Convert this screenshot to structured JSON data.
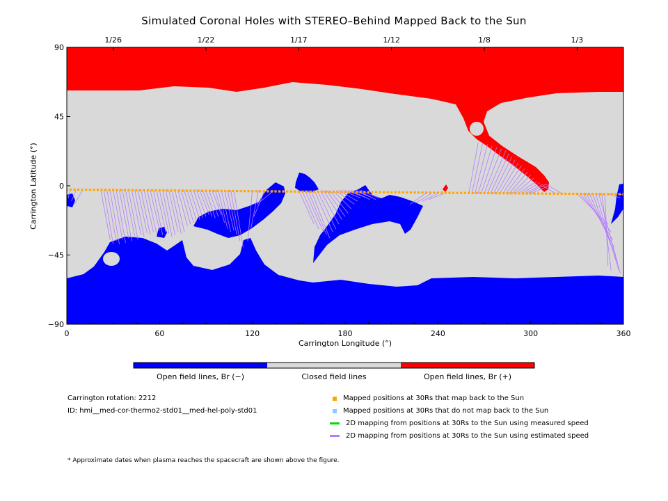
{
  "title": "Simulated Coronal Holes with STEREO–Behind Mapped Back to the Sun",
  "colors": {
    "negative": "#0000ff",
    "closed": "#d9d9d9",
    "positive": "#ff0000",
    "mapped": "#ffa500",
    "unmapped": "#87cefa",
    "measured": "#00dd00",
    "estimated": "#b47cff"
  },
  "chart_data": {
    "type": "map",
    "xlabel": "Carrington Longitude (°)",
    "ylabel": "Carrington Latitude (°)",
    "xlim": [
      0,
      360
    ],
    "ylim": [
      -90,
      90
    ],
    "x_ticks": [
      0,
      60,
      120,
      180,
      240,
      300,
      360
    ],
    "y_ticks": [
      -90,
      -45,
      0,
      45,
      90
    ],
    "y_tick_labels": [
      "−90",
      "−45",
      "0",
      "45",
      "90"
    ],
    "top_axis_dates": [
      {
        "label": "1/26",
        "lon": 30
      },
      {
        "label": "1/22",
        "lon": 90
      },
      {
        "label": "1/17",
        "lon": 150
      },
      {
        "label": "1/12",
        "lon": 210
      },
      {
        "label": "1/8",
        "lon": 270
      },
      {
        "label": "1/3",
        "lon": 330
      }
    ],
    "colorbar": {
      "segments": [
        "negative",
        "closed",
        "positive"
      ],
      "labels": [
        "Open field lines, Br (−)",
        "Closed field lines",
        "Open field lines, Br (+)"
      ]
    },
    "spacecraft_track": {
      "lon_start": 0,
      "lon_end": 360,
      "lat_start": -2.5,
      "lat_end": -5.5,
      "step": 2.5
    },
    "mapping_lines": [
      {
        "from": [
          22,
          -3
        ],
        "to": [
          28,
          -35
        ]
      },
      {
        "from": [
          24,
          -3
        ],
        "to": [
          30,
          -38
        ]
      },
      {
        "from": [
          26,
          -3
        ],
        "to": [
          32,
          -36
        ]
      },
      {
        "from": [
          28,
          -3
        ],
        "to": [
          34,
          -38
        ]
      },
      {
        "from": [
          30,
          -3
        ],
        "to": [
          36,
          -35
        ]
      },
      {
        "from": [
          32,
          -3
        ],
        "to": [
          38,
          -37
        ]
      },
      {
        "from": [
          34,
          -3
        ],
        "to": [
          40,
          -34
        ]
      },
      {
        "from": [
          36,
          -3
        ],
        "to": [
          42,
          -36
        ]
      },
      {
        "from": [
          38,
          -3
        ],
        "to": [
          44,
          -33
        ]
      },
      {
        "from": [
          40,
          -3
        ],
        "to": [
          46,
          -35
        ]
      },
      {
        "from": [
          42,
          -3
        ],
        "to": [
          48,
          -32
        ]
      },
      {
        "from": [
          44,
          -3
        ],
        "to": [
          50,
          -33
        ]
      },
      {
        "from": [
          46,
          -3
        ],
        "to": [
          52,
          -31
        ]
      },
      {
        "from": [
          48,
          -3
        ],
        "to": [
          54,
          -32
        ]
      },
      {
        "from": [
          50,
          -3
        ],
        "to": [
          56,
          -30
        ]
      },
      {
        "from": [
          52,
          -3
        ],
        "to": [
          58,
          -31
        ]
      },
      {
        "from": [
          54,
          -3
        ],
        "to": [
          60,
          -29
        ]
      },
      {
        "from": [
          56,
          -3
        ],
        "to": [
          62,
          -32
        ]
      },
      {
        "from": [
          58,
          -3
        ],
        "to": [
          64,
          -30
        ]
      },
      {
        "from": [
          60,
          -3
        ],
        "to": [
          66,
          -31
        ]
      },
      {
        "from": [
          62,
          -3
        ],
        "to": [
          68,
          -33
        ]
      },
      {
        "from": [
          64,
          -3
        ],
        "to": [
          70,
          -32
        ]
      },
      {
        "from": [
          66,
          -3
        ],
        "to": [
          72,
          -30
        ]
      },
      {
        "from": [
          68,
          -3
        ],
        "to": [
          74,
          -31
        ]
      },
      {
        "from": [
          70,
          -3
        ],
        "to": [
          76,
          -30
        ]
      },
      {
        "from": [
          72,
          -3
        ],
        "to": [
          78,
          -26
        ]
      },
      {
        "from": [
          74,
          -3
        ],
        "to": [
          80,
          -25
        ]
      },
      {
        "from": [
          76,
          -3
        ],
        "to": [
          82,
          -24
        ]
      },
      {
        "from": [
          78,
          -3
        ],
        "to": [
          84,
          -23
        ]
      },
      {
        "from": [
          80,
          -3
        ],
        "to": [
          86,
          -22
        ]
      },
      {
        "from": [
          82,
          -3
        ],
        "to": [
          88,
          -21
        ]
      },
      {
        "from": [
          84,
          -3
        ],
        "to": [
          90,
          -20
        ]
      },
      {
        "from": [
          86,
          -3
        ],
        "to": [
          92,
          -19
        ]
      },
      {
        "from": [
          88,
          -3
        ],
        "to": [
          94,
          -20
        ]
      },
      {
        "from": [
          90,
          -3
        ],
        "to": [
          96,
          -21
        ]
      },
      {
        "from": [
          92,
          -3
        ],
        "to": [
          98,
          -20
        ]
      },
      {
        "from": [
          94,
          -3
        ],
        "to": [
          100,
          -19
        ]
      },
      {
        "from": [
          96,
          -3
        ],
        "to": [
          102,
          -24
        ]
      },
      {
        "from": [
          98,
          -3
        ],
        "to": [
          104,
          -28
        ]
      },
      {
        "from": [
          100,
          -3
        ],
        "to": [
          106,
          -30
        ]
      },
      {
        "from": [
          102,
          -3
        ],
        "to": [
          108,
          -29
        ]
      },
      {
        "from": [
          104,
          -3
        ],
        "to": [
          110,
          -32
        ]
      },
      {
        "from": [
          106,
          -3
        ],
        "to": [
          112,
          -36
        ]
      },
      {
        "from": [
          108,
          -3
        ],
        "to": [
          114,
          -40
        ]
      },
      {
        "from": [
          120,
          -3
        ],
        "to": [
          117,
          -36
        ]
      },
      {
        "from": [
          124,
          -3
        ],
        "to": [
          119,
          -28
        ]
      },
      {
        "from": [
          128,
          -3
        ],
        "to": [
          121,
          -20
        ]
      },
      {
        "from": [
          134,
          -3
        ],
        "to": [
          123,
          -12
        ]
      },
      {
        "from": [
          150,
          -3
        ],
        "to": [
          160,
          -25
        ]
      },
      {
        "from": [
          152,
          -3
        ],
        "to": [
          163,
          -28
        ]
      },
      {
        "from": [
          154,
          -3
        ],
        "to": [
          166,
          -30
        ]
      },
      {
        "from": [
          156,
          -3
        ],
        "to": [
          168,
          -32
        ]
      },
      {
        "from": [
          158,
          -3
        ],
        "to": [
          170,
          -34
        ]
      },
      {
        "from": [
          160,
          -3
        ],
        "to": [
          172,
          -30
        ]
      },
      {
        "from": [
          162,
          -3
        ],
        "to": [
          174,
          -28
        ]
      },
      {
        "from": [
          164,
          -3
        ],
        "to": [
          176,
          -25
        ]
      },
      {
        "from": [
          166,
          -3
        ],
        "to": [
          178,
          -22
        ]
      },
      {
        "from": [
          168,
          -3
        ],
        "to": [
          180,
          -20
        ]
      },
      {
        "from": [
          170,
          -3
        ],
        "to": [
          182,
          -18
        ]
      },
      {
        "from": [
          172,
          -3
        ],
        "to": [
          184,
          -15
        ]
      },
      {
        "from": [
          174,
          -3
        ],
        "to": [
          186,
          -12
        ]
      },
      {
        "from": [
          176,
          -3
        ],
        "to": [
          188,
          -10
        ]
      },
      {
        "from": [
          178,
          -3
        ],
        "to": [
          190,
          -8
        ]
      },
      {
        "from": [
          180,
          -3
        ],
        "to": [
          192,
          -7
        ]
      },
      {
        "from": [
          182,
          -3
        ],
        "to": [
          194,
          -8
        ]
      },
      {
        "from": [
          184,
          -3
        ],
        "to": [
          196,
          -9
        ]
      },
      {
        "from": [
          186,
          -3
        ],
        "to": [
          198,
          -8
        ]
      },
      {
        "from": [
          188,
          -3
        ],
        "to": [
          200,
          -9
        ]
      },
      {
        "from": [
          190,
          -3
        ],
        "to": [
          202,
          -8
        ]
      },
      {
        "from": [
          232,
          -5
        ],
        "to": [
          222,
          -12
        ]
      },
      {
        "from": [
          236,
          -5
        ],
        "to": [
          226,
          -11
        ]
      },
      {
        "from": [
          240,
          -5
        ],
        "to": [
          230,
          -10
        ]
      },
      {
        "from": [
          244,
          -5
        ],
        "to": [
          234,
          -9
        ]
      },
      {
        "from": [
          260,
          -5
        ],
        "to": [
          266,
          28
        ]
      },
      {
        "from": [
          262,
          -5
        ],
        "to": [
          269,
          28
        ]
      },
      {
        "from": [
          264,
          -5
        ],
        "to": [
          272,
          27
        ]
      },
      {
        "from": [
          266,
          -5
        ],
        "to": [
          275,
          26
        ]
      },
      {
        "from": [
          268,
          -5
        ],
        "to": [
          278,
          25
        ]
      },
      {
        "from": [
          270,
          -5
        ],
        "to": [
          281,
          24
        ]
      },
      {
        "from": [
          272,
          -5
        ],
        "to": [
          284,
          23
        ]
      },
      {
        "from": [
          274,
          -5
        ],
        "to": [
          286,
          21
        ]
      },
      {
        "from": [
          276,
          -5
        ],
        "to": [
          288,
          19
        ]
      },
      {
        "from": [
          278,
          -5
        ],
        "to": [
          290,
          17
        ]
      },
      {
        "from": [
          280,
          -5
        ],
        "to": [
          292,
          15
        ]
      },
      {
        "from": [
          282,
          -5
        ],
        "to": [
          294,
          13
        ]
      },
      {
        "from": [
          284,
          -5
        ],
        "to": [
          296,
          11
        ]
      },
      {
        "from": [
          286,
          -5
        ],
        "to": [
          298,
          9
        ]
      },
      {
        "from": [
          288,
          -5
        ],
        "to": [
          300,
          7
        ]
      },
      {
        "from": [
          290,
          -5
        ],
        "to": [
          302,
          5
        ]
      },
      {
        "from": [
          292,
          -5
        ],
        "to": [
          304,
          3
        ]
      },
      {
        "from": [
          294,
          -5
        ],
        "to": [
          306,
          2
        ]
      },
      {
        "from": [
          296,
          -5
        ],
        "to": [
          308,
          1
        ]
      },
      {
        "from": [
          298,
          -5
        ],
        "to": [
          310,
          1
        ]
      },
      {
        "from": [
          300,
          -5
        ],
        "to": [
          312,
          0
        ]
      },
      {
        "from": [
          316,
          -5
        ],
        "to": [
          308,
          0
        ]
      },
      {
        "from": [
          320,
          -5
        ],
        "to": [
          310,
          1
        ]
      },
      {
        "from": [
          330,
          -5
        ],
        "to": [
          350,
          -25
        ]
      },
      {
        "from": [
          332,
          -5
        ],
        "to": [
          352,
          -30
        ]
      },
      {
        "from": [
          334,
          -5
        ],
        "to": [
          353,
          -35
        ]
      },
      {
        "from": [
          336,
          -5
        ],
        "to": [
          354,
          -40
        ]
      },
      {
        "from": [
          338,
          -5
        ],
        "to": [
          355,
          -45
        ]
      },
      {
        "from": [
          340,
          -5
        ],
        "to": [
          356,
          -50
        ]
      },
      {
        "from": [
          342,
          -5
        ],
        "to": [
          357,
          -55
        ]
      },
      {
        "from": [
          344,
          -5
        ],
        "to": [
          358,
          -57
        ]
      },
      {
        "from": [
          346,
          -5
        ],
        "to": [
          352,
          -55
        ]
      },
      {
        "from": [
          348,
          -5
        ],
        "to": [
          350,
          -52
        ]
      },
      {
        "from": [
          350,
          -5
        ],
        "to": [
          358,
          -8
        ]
      },
      {
        "from": [
          354,
          -5
        ],
        "to": [
          360,
          -6
        ]
      },
      {
        "from": [
          2,
          -3
        ],
        "to": [
          1,
          -8
        ]
      },
      {
        "from": [
          6,
          -3
        ],
        "to": [
          3,
          -10
        ]
      },
      {
        "from": [
          10,
          -3
        ],
        "to": [
          5,
          -12
        ]
      }
    ]
  },
  "info": {
    "rotation": "Carrington rotation: 2212",
    "id": "ID: hmi__med-cor-thermo2-std01__med-hel-poly-std01"
  },
  "legend": [
    {
      "key": "mapped",
      "kind": "square",
      "label": "Mapped positions at 30Rs that map back to the Sun"
    },
    {
      "key": "unmapped",
      "kind": "square",
      "label": "Mapped positions at 30Rs that do not map back to the Sun"
    },
    {
      "key": "measured",
      "kind": "line",
      "label": "2D mapping from positions at 30Rs to the Sun using measured speed"
    },
    {
      "key": "estimated",
      "kind": "line",
      "label": "2D mapping from positions at 30Rs to the Sun using estimated speed"
    }
  ],
  "footnote": "* Approximate dates when plasma reaches the spacecraft are shown above the figure."
}
